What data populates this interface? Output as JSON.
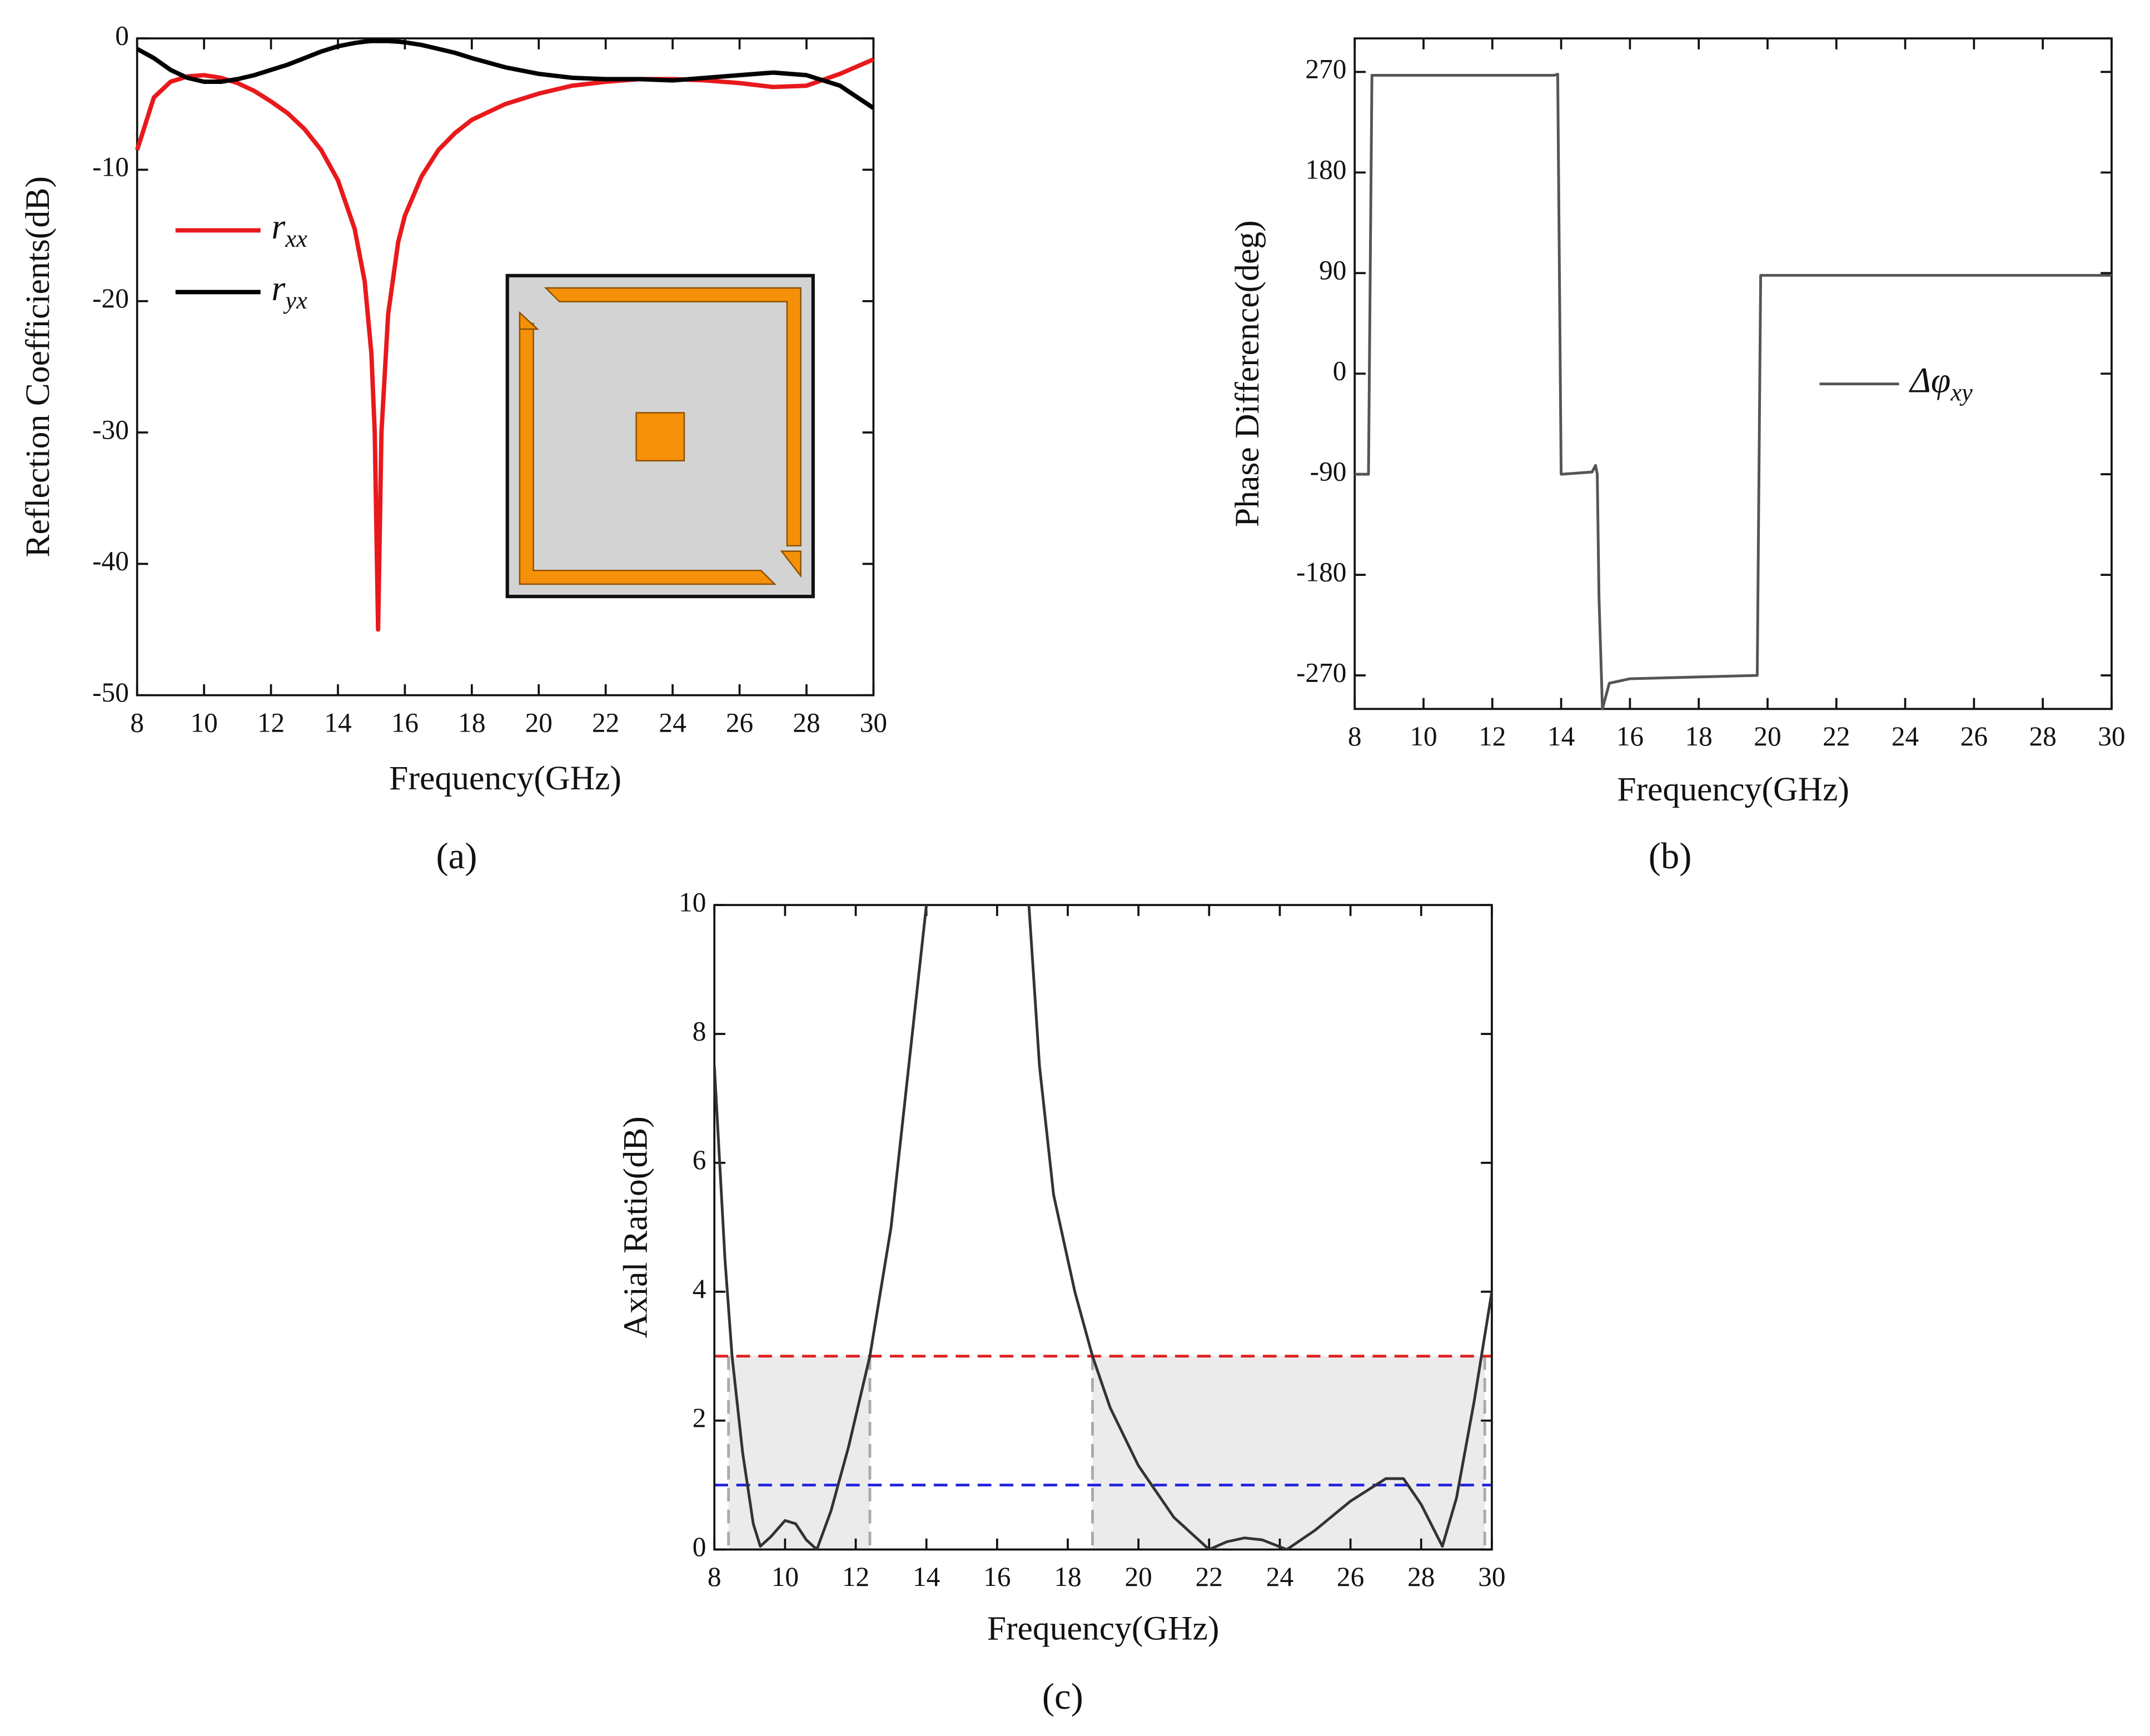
{
  "chart_data": [
    {
      "type": "line",
      "panel_label": "(a)",
      "xlabel": "Frequency(GHz)",
      "ylabel": "Reflection Coefficients(dB)",
      "xlim": [
        8,
        30
      ],
      "ylim": [
        -50,
        0
      ],
      "xticks": [
        8,
        10,
        12,
        14,
        16,
        18,
        20,
        22,
        24,
        26,
        28,
        30
      ],
      "yticks": [
        0,
        -10,
        -20,
        -30,
        -40,
        -50
      ],
      "x": [
        8,
        8.5,
        9,
        9.5,
        10,
        10.5,
        11,
        11.5,
        12,
        12.5,
        13,
        13.5,
        14,
        14.5,
        14.8,
        15,
        15.1,
        15.2,
        15.3,
        15.5,
        15.8,
        16,
        16.5,
        17,
        17.5,
        18,
        19,
        20,
        21,
        22,
        23,
        24,
        25,
        26,
        27,
        28,
        29,
        30
      ],
      "series": [
        {
          "name": "r",
          "name_subscript": "xx",
          "color": "#e8191c",
          "values": [
            -8.5,
            -4.5,
            -3.3,
            -2.9,
            -2.8,
            -3.0,
            -3.4,
            -4.0,
            -4.8,
            -5.7,
            -6.9,
            -8.5,
            -10.8,
            -14.5,
            -18.5,
            -24,
            -30,
            -45,
            -30,
            -21,
            -15.5,
            -13.5,
            -10.5,
            -8.5,
            -7.2,
            -6.2,
            -5,
            -4.2,
            -3.6,
            -3.3,
            -3.1,
            -3.1,
            -3.2,
            -3.4,
            -3.7,
            -3.6,
            -2.7,
            -1.6
          ]
        },
        {
          "name": "r",
          "name_subscript": "yx",
          "color": "#000000",
          "values": [
            -0.8,
            -1.5,
            -2.4,
            -3.0,
            -3.3,
            -3.3,
            -3.1,
            -2.8,
            -2.4,
            -2.0,
            -1.5,
            -1.0,
            -0.6,
            -0.35,
            -0.25,
            -0.2,
            -0.2,
            -0.2,
            -0.2,
            -0.2,
            -0.25,
            -0.3,
            -0.5,
            -0.8,
            -1.1,
            -1.5,
            -2.2,
            -2.7,
            -3.0,
            -3.1,
            -3.1,
            -3.2,
            -3.0,
            -2.8,
            -2.6,
            -2.8,
            -3.6,
            -5.3
          ]
        }
      ]
    },
    {
      "type": "line",
      "panel_label": "(b)",
      "xlabel": "Frequency(GHz)",
      "ylabel": "Phase Difference(deg)",
      "xlim": [
        8,
        30
      ],
      "ylim": [
        -300,
        300
      ],
      "xticks": [
        8,
        10,
        12,
        14,
        16,
        18,
        20,
        22,
        24,
        26,
        28,
        30
      ],
      "yticks": [
        270,
        180,
        90,
        0,
        -90,
        -180,
        -270
      ],
      "x": [
        8,
        8.4,
        8.5,
        13.8,
        13.9,
        14.0,
        14.9,
        15.0,
        15.05,
        15.1,
        15.2,
        15.4,
        16,
        19.7,
        19.8,
        30
      ],
      "series": [
        {
          "name": "Δφ",
          "name_subscript": "xy",
          "color": "#555555",
          "values": [
            -90,
            -90,
            267,
            267,
            268,
            -90,
            -88,
            -82,
            -90,
            -200,
            -300,
            -277,
            -273,
            -270,
            88,
            88
          ]
        }
      ]
    },
    {
      "type": "line",
      "panel_label": "(c)",
      "xlabel": "Frequency(GHz)",
      "ylabel": "Axial Ratio(dB)",
      "xlim": [
        8,
        30
      ],
      "ylim": [
        0,
        10
      ],
      "xticks": [
        8,
        10,
        12,
        14,
        16,
        18,
        20,
        22,
        24,
        26,
        28,
        30
      ],
      "yticks": [
        0,
        2,
        4,
        6,
        8,
        10
      ],
      "x": [
        8,
        8.3,
        8.5,
        8.8,
        9.1,
        9.3,
        9.6,
        10,
        10.3,
        10.6,
        10.9,
        11.3,
        11.8,
        12.4,
        13,
        13.5,
        14,
        15.5,
        16.9,
        17.2,
        17.6,
        18.2,
        18.7,
        19.2,
        20,
        21,
        22,
        22.5,
        23,
        23.5,
        24.2,
        25,
        26,
        27,
        27.5,
        28,
        28.6,
        29,
        29.5,
        30
      ],
      "series": [
        {
          "color": "#333333",
          "values": [
            7.5,
            4.5,
            3.0,
            1.5,
            0.4,
            0.05,
            0.2,
            0.45,
            0.4,
            0.15,
            0,
            0.6,
            1.6,
            3.0,
            5,
            7.5,
            10,
            null,
            10,
            7.5,
            5.5,
            4,
            3.0,
            2.2,
            1.3,
            0.5,
            0,
            0.12,
            0.18,
            0.15,
            0,
            0.3,
            0.75,
            1.1,
            1.1,
            0.7,
            0.05,
            0.8,
            2.3,
            4.0
          ]
        }
      ],
      "reference_lines": [
        {
          "value": 3,
          "color": "#e02020"
        },
        {
          "value": 1,
          "color": "#2424e0"
        }
      ],
      "shaded_ranges": [
        {
          "x": [
            8.4,
            12.4
          ],
          "y": [
            0,
            3
          ]
        },
        {
          "x": [
            18.7,
            29.8
          ],
          "y": [
            0,
            3
          ]
        }
      ]
    }
  ]
}
